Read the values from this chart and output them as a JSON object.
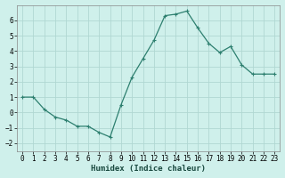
{
  "x": [
    0,
    1,
    2,
    3,
    4,
    5,
    6,
    7,
    8,
    9,
    10,
    11,
    12,
    13,
    14,
    15,
    16,
    17,
    18,
    19,
    20,
    21,
    22,
    23
  ],
  "y": [
    1.0,
    1.0,
    0.2,
    -0.3,
    -0.5,
    -0.9,
    -0.9,
    -1.3,
    -1.6,
    0.5,
    2.3,
    3.5,
    4.7,
    6.3,
    6.4,
    6.6,
    5.5,
    4.5,
    3.9,
    4.3,
    3.1,
    2.5,
    2.5,
    2.5
  ],
  "line_color": "#2d7f6f",
  "marker": "+",
  "markersize": 3,
  "markeredgewidth": 0.8,
  "linewidth": 0.9,
  "bg_color": "#cff0eb",
  "grid_color": "#b0d8d2",
  "xlabel": "Humidex (Indice chaleur)",
  "xlabel_fontsize": 6.5,
  "tick_fontsize": 5.5,
  "xlim": [
    -0.5,
    23.5
  ],
  "ylim": [
    -2.5,
    7.0
  ],
  "yticks": [
    -2,
    -1,
    0,
    1,
    2,
    3,
    4,
    5,
    6
  ],
  "xtick_labels": [
    "0",
    "1",
    "2",
    "3",
    "4",
    "5",
    "6",
    "7",
    "8",
    "9",
    "10",
    "11",
    "12",
    "13",
    "14",
    "15",
    "16",
    "17",
    "18",
    "19",
    "20",
    "21",
    "22",
    "23"
  ]
}
